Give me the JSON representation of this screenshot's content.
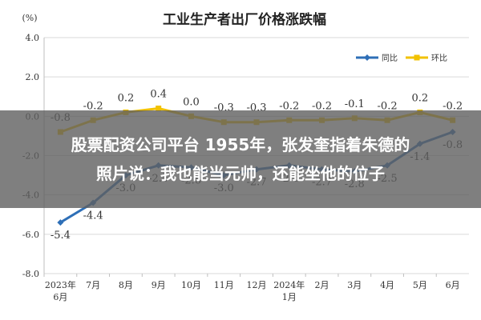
{
  "overlay": {
    "line1": "股票配资公司平台 1955年，张发奎指着朱德的",
    "line2": "照片说：我也能当元帅，还能坐他的位子"
  },
  "chart_data": {
    "type": "line",
    "title": "工业生产者出厂价格涨跌幅",
    "unit_label": "(%)",
    "categories": [
      [
        "2023年",
        "6月"
      ],
      [
        "7月"
      ],
      [
        "8月"
      ],
      [
        "9月"
      ],
      [
        "10月"
      ],
      [
        "11月"
      ],
      [
        "12月"
      ],
      [
        "2024年",
        "1月"
      ],
      [
        "2月"
      ],
      [
        "3月"
      ],
      [
        "4月"
      ],
      [
        "5月"
      ],
      [
        "6月"
      ]
    ],
    "ylim": [
      -8.0,
      4.0
    ],
    "yticks": [
      "4.0",
      "2.0",
      "0.0",
      "-2.0",
      "-4.0",
      "-6.0",
      "-8.0"
    ],
    "ytick_values": [
      4,
      2,
      0,
      -2,
      -4,
      -6,
      -8
    ],
    "grid": true,
    "legend_position": "top-right",
    "series": [
      {
        "name": "同比",
        "color": "#2E6FB7",
        "values": [
          -5.4,
          -4.4,
          -3.0,
          -2.5,
          -2.6,
          -3.0,
          -2.7,
          -2.5,
          -2.7,
          -2.8,
          -2.5,
          -1.4,
          -0.8
        ],
        "labels": [
          "-5.4",
          "-4.4",
          "-3.0",
          "-2.5",
          "-2.6",
          "-3.0",
          "-2.7",
          "-2.5",
          "-2.7",
          "-2.8",
          "-2.5",
          "-1.4",
          "-0.8"
        ]
      },
      {
        "name": "环比",
        "color": "#F2C200",
        "values": [
          -0.8,
          -0.2,
          0.2,
          0.4,
          0.0,
          -0.3,
          -0.3,
          -0.2,
          -0.2,
          -0.1,
          -0.2,
          0.2,
          -0.2
        ],
        "labels": [
          "-0.8",
          "-0.2",
          "0.2",
          "0.4",
          "0.0",
          "-0.3",
          "-0.3",
          "-0.2",
          "-0.2",
          "-0.1",
          "-0.2",
          "0.2",
          "-0.2"
        ]
      }
    ]
  }
}
